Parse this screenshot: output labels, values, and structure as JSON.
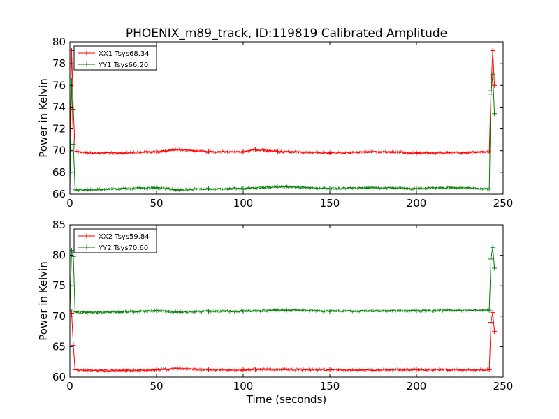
{
  "title": "PHOENIX_m89_track, ID:119819 Calibrated Amplitude",
  "colors": {
    "red": "#ff0000",
    "green": "#008000"
  },
  "chart_data": [
    {
      "type": "line",
      "ylabel": "Power in Kelvin",
      "xlabel": "",
      "xlim": [
        0,
        250
      ],
      "ylim": [
        66,
        80
      ],
      "xticks": [
        0,
        50,
        100,
        150,
        200,
        250
      ],
      "yticks": [
        66,
        68,
        70,
        72,
        74,
        76,
        78,
        80
      ],
      "legend_position": "top-left",
      "series": [
        {
          "name": "XX1 Tsys68.34",
          "color": "#ff0000",
          "x": [
            0,
            1,
            2,
            3,
            10,
            30,
            50,
            62,
            80,
            100,
            107,
            120,
            150,
            180,
            200,
            220,
            242,
            243,
            244,
            245
          ],
          "y": [
            70,
            79.2,
            73.8,
            69.9,
            69.8,
            69.8,
            69.9,
            70.1,
            69.9,
            69.9,
            70.1,
            69.9,
            69.8,
            69.9,
            69.8,
            69.8,
            69.9,
            75.5,
            79.2,
            76
          ]
        },
        {
          "name": "YY1 Tsys66.20",
          "color": "#008000",
          "x": [
            0,
            1,
            2,
            3,
            10,
            30,
            50,
            62,
            80,
            100,
            125,
            150,
            172,
            200,
            220,
            242,
            243,
            244,
            245
          ],
          "y": [
            66.5,
            76.5,
            70.6,
            66.4,
            66.4,
            66.5,
            66.6,
            66.4,
            66.5,
            66.5,
            66.7,
            66.5,
            66.6,
            66.5,
            66.6,
            66.5,
            75.2,
            77,
            73.4
          ]
        }
      ]
    },
    {
      "type": "line",
      "ylabel": "Power in Kelvin",
      "xlabel": "Time (seconds)",
      "xlim": [
        0,
        250
      ],
      "ylim": [
        60,
        85
      ],
      "xticks": [
        0,
        50,
        100,
        150,
        200,
        250
      ],
      "yticks": [
        60,
        65,
        70,
        75,
        80,
        85
      ],
      "legend_position": "top-left",
      "series": [
        {
          "name": "XX2 Tsys59.84",
          "color": "#ff0000",
          "x": [
            0,
            1,
            2,
            3,
            10,
            30,
            50,
            62,
            80,
            100,
            107,
            150,
            200,
            242,
            243,
            244,
            245
          ],
          "y": [
            71,
            70.5,
            65.2,
            61.2,
            61.1,
            61.1,
            61.2,
            61.4,
            61.2,
            61.2,
            61.3,
            61.2,
            61.2,
            61.2,
            69,
            70.6,
            67.5
          ]
        },
        {
          "name": "YY2 Tsys70.60",
          "color": "#008000",
          "x": [
            0,
            1,
            2,
            3,
            10,
            30,
            50,
            62,
            80,
            100,
            125,
            150,
            200,
            242,
            243,
            244,
            245
          ],
          "y": [
            71,
            80.8,
            79.8,
            70.7,
            70.6,
            70.7,
            70.9,
            70.7,
            70.8,
            70.8,
            71,
            70.8,
            70.9,
            71,
            79.4,
            81.3,
            77.9
          ]
        }
      ]
    }
  ]
}
